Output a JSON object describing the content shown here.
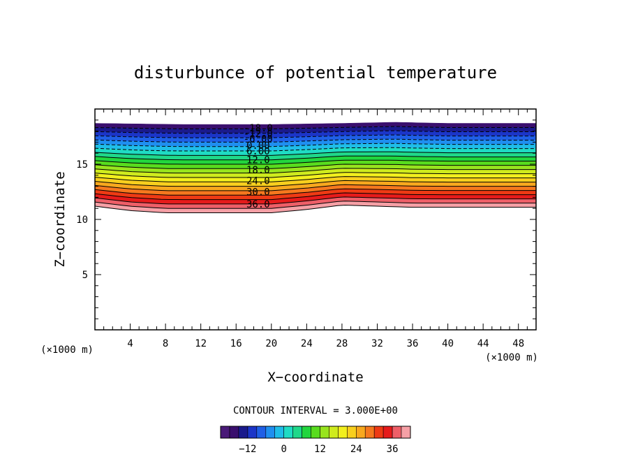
{
  "chart_data": {
    "type": "contour",
    "title": "disturbunce of potential temperature",
    "xlabel": "X−coordinate",
    "ylabel": "Z−coordinate",
    "x_unit_label": "(×1000 m)",
    "y_unit_label": "(×1000 m)",
    "xlim": [
      0,
      50
    ],
    "ylim": [
      0,
      20
    ],
    "x_ticks": [
      "4",
      "8",
      "12",
      "16",
      "20",
      "24",
      "28",
      "32",
      "36",
      "40",
      "44",
      "48"
    ],
    "y_ticks": [
      "5",
      "10",
      "15"
    ],
    "contour_interval_text": "CONTOUR INTERVAL = 3.000E+00",
    "contour_levels": [
      -18,
      -15,
      -12,
      -9,
      -6,
      -3,
      0,
      3,
      6,
      9,
      12,
      15,
      18,
      21,
      24,
      27,
      30,
      33,
      36,
      39
    ],
    "contour_labels": [
      "-18.0",
      "-12.0",
      "-6.00",
      "0.00",
      "6.00",
      "12.0",
      "18.0",
      "24.0",
      "30.0",
      "36.0"
    ],
    "contour_label_x": 18.5,
    "contour_label_z": [
      18.3,
      17.8,
      17.3,
      16.7,
      16.2,
      15.4,
      14.5,
      13.5,
      12.5,
      11.4
    ],
    "field_top_z": 18.8,
    "field_top_profile": {
      "x": [
        0,
        10,
        20,
        28,
        34,
        40,
        50
      ],
      "z": [
        18.7,
        18.6,
        18.6,
        18.7,
        18.8,
        18.7,
        18.7
      ]
    },
    "field_bottom_profile": {
      "x": [
        0,
        4,
        8,
        12,
        16,
        20,
        24,
        28,
        32,
        36,
        40,
        44,
        48,
        50
      ],
      "z": [
        11.2,
        10.8,
        10.6,
        10.6,
        10.6,
        10.6,
        10.9,
        11.3,
        11.2,
        11.1,
        11.1,
        11.1,
        11.1,
        11.1
      ]
    },
    "colorbar_ticks": [
      "-12",
      "0",
      "12",
      "24",
      "36"
    ],
    "colorbar_range": [
      -21,
      42
    ],
    "colors": {
      "-18": "#3a0f6e",
      "-15": "#1a1a8c",
      "-12": "#1b35c8",
      "-9": "#1f5fe6",
      "-6": "#1f8ff0",
      "-3": "#1fbde8",
      "0": "#1fdcc4",
      "3": "#1fd88a",
      "6": "#22d63e",
      "9": "#58dc1e",
      "12": "#98e41e",
      "15": "#cfeb1e",
      "18": "#f2ef1e",
      "21": "#f8cf1e",
      "24": "#f8a81e",
      "27": "#f5781e",
      "30": "#ee3a14",
      "33": "#e61b1b",
      "36": "#ee5f68",
      "39": "#f6a0a6"
    }
  }
}
